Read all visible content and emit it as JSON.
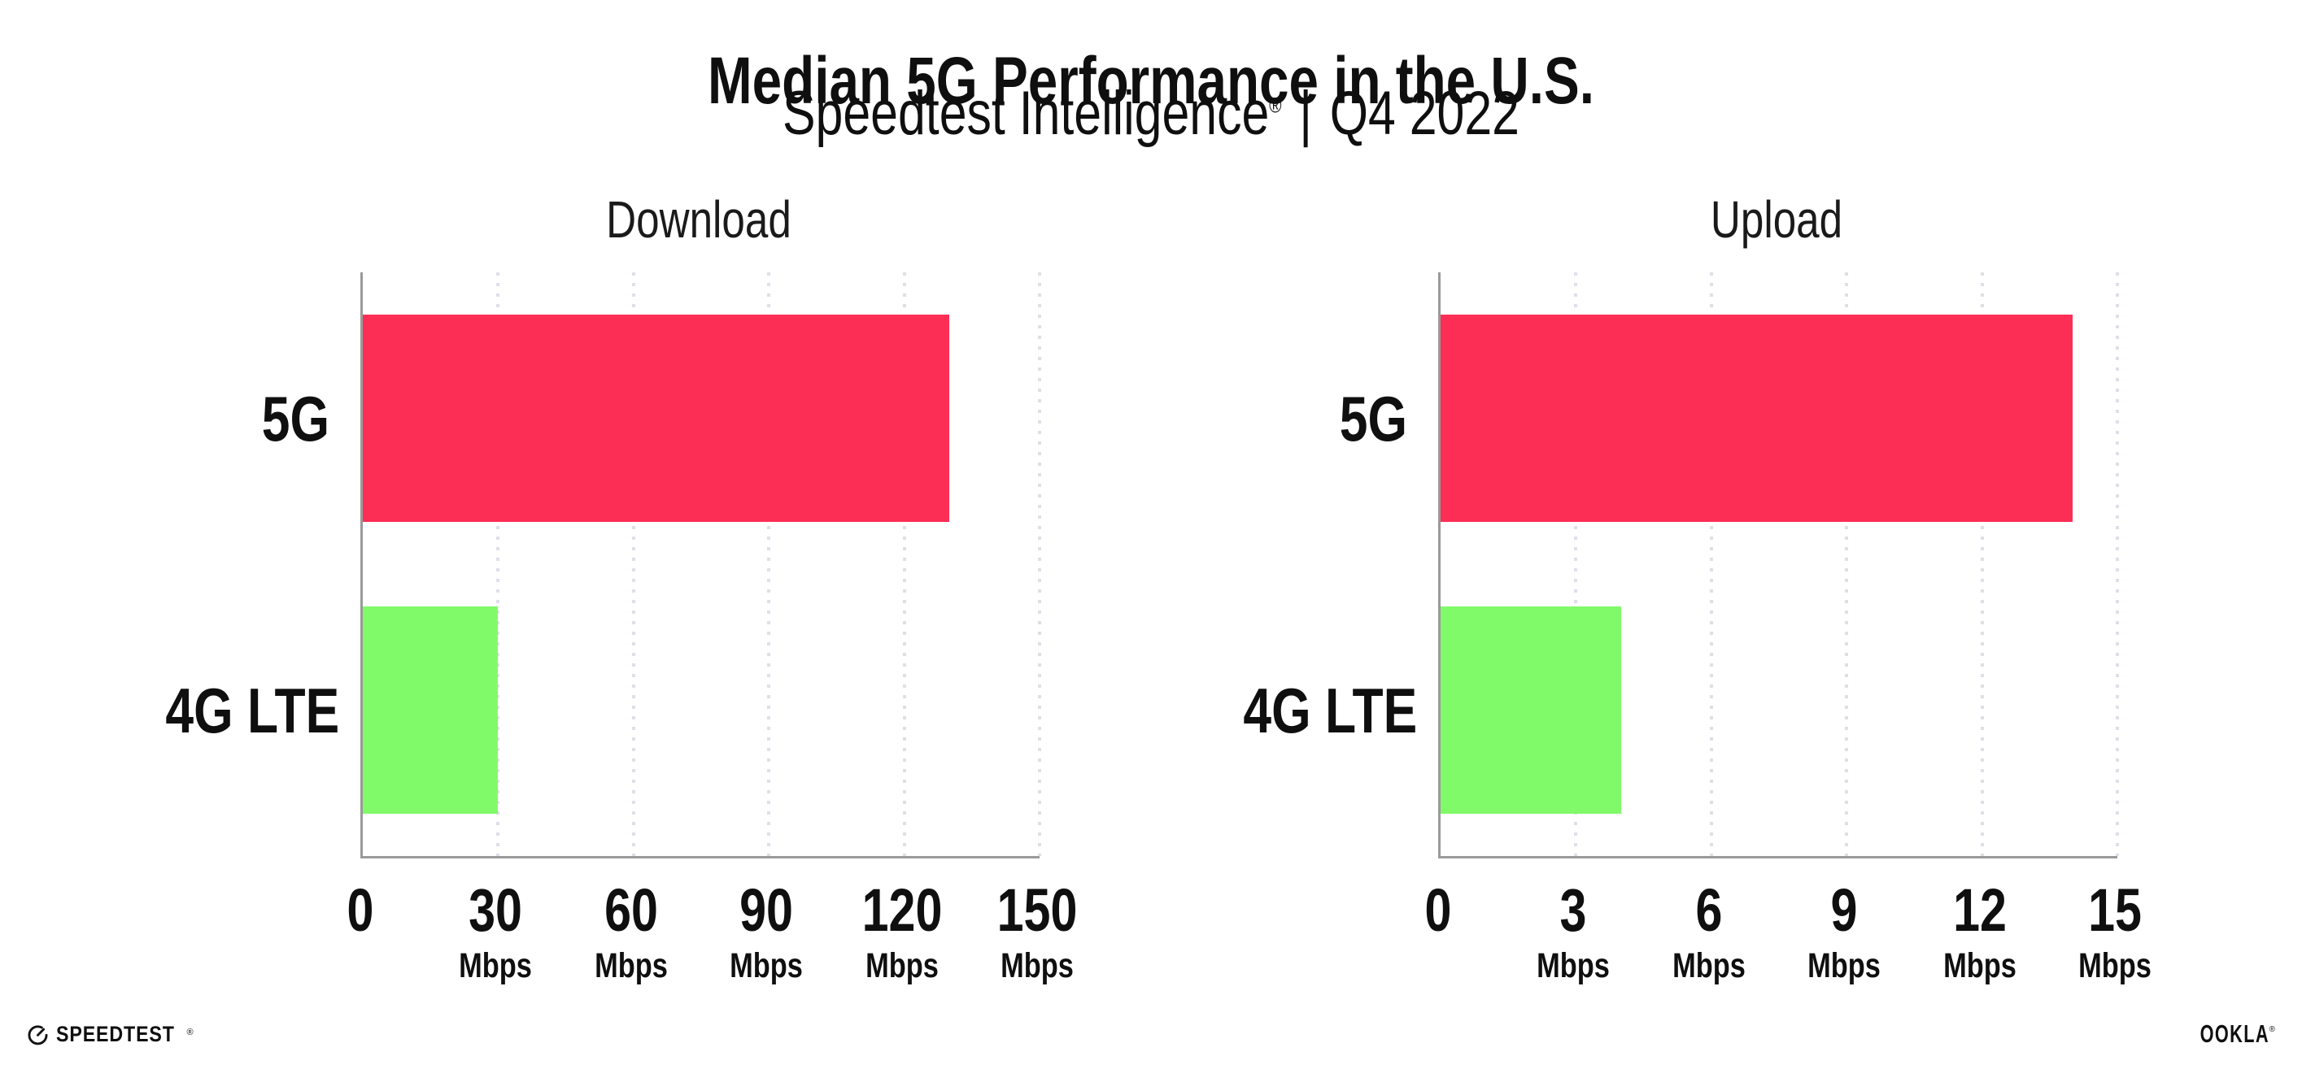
{
  "header": {
    "title": "Median 5G Performance in the U.S.",
    "subtitle_brand": "Speedtest Intelligence",
    "subtitle_reg": "®",
    "subtitle_sep": "|",
    "subtitle_period": "Q4 2022"
  },
  "chart_data": [
    {
      "type": "bar",
      "orientation": "horizontal",
      "title": "Download",
      "categories": [
        "5G",
        "4G LTE"
      ],
      "values": [
        130,
        30
      ],
      "unit": "Mbps",
      "xlim": [
        0,
        150
      ],
      "xticks": [
        0,
        30,
        60,
        90,
        120,
        150
      ],
      "unit_shown_on_zero": false,
      "grid": "vertical-dotted",
      "legend": "none",
      "bar_colors": [
        "#fd2e55",
        "#80fa68"
      ]
    },
    {
      "type": "bar",
      "orientation": "horizontal",
      "title": "Upload",
      "categories": [
        "5G",
        "4G LTE"
      ],
      "values": [
        14,
        4
      ],
      "unit": "Mbps",
      "xlim": [
        0,
        15
      ],
      "xticks": [
        0,
        3,
        6,
        9,
        12,
        15
      ],
      "unit_shown_on_zero": false,
      "grid": "vertical-dotted",
      "legend": "none",
      "bar_colors": [
        "#fd2e55",
        "#80fa68"
      ]
    }
  ],
  "colors": {
    "background": "#ffffff",
    "bar_5g": "#fd2e55",
    "bar_4g_lte": "#80fa68",
    "axis": "#9a9a9a",
    "gridline": "#dfdfe9",
    "text": "#0f0f0f",
    "heading": "#1a1a1a"
  },
  "footer": {
    "speedtest_label": "SPEEDTEST",
    "speedtest_reg": "®",
    "ookla_label": "OOKLA",
    "ookla_reg": "®"
  }
}
